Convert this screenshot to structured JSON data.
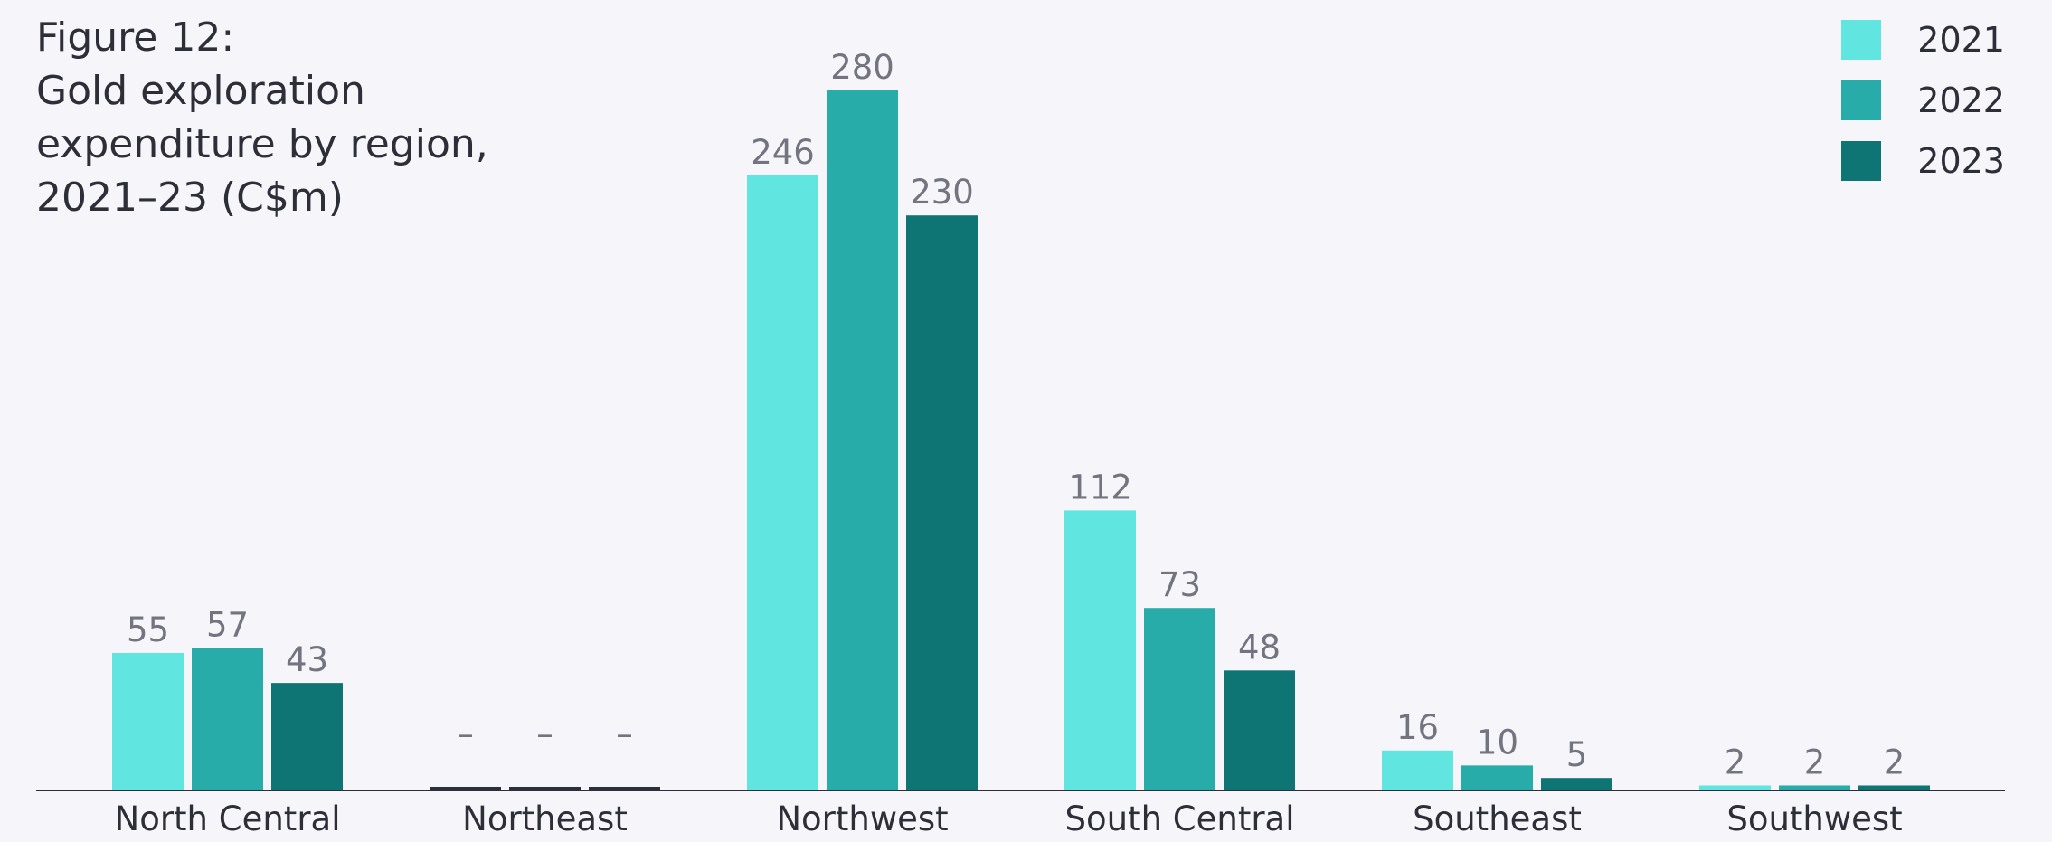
{
  "chart_data": {
    "type": "bar",
    "title_lines": [
      "Figure 12:",
      "Gold exploration",
      "expenditure by region,",
      "2021–23 (C$m)"
    ],
    "categories": [
      "North Central",
      "Northeast",
      "Northwest",
      "South Central",
      "Southeast",
      "Southwest"
    ],
    "series": [
      {
        "name": "2021",
        "color": "#61e5e1",
        "values": [
          55,
          null,
          246,
          112,
          16,
          2
        ],
        "labels": [
          "55",
          "–",
          "246",
          "112",
          "16",
          "2"
        ]
      },
      {
        "name": "2022",
        "color": "#28acaa",
        "values": [
          57,
          null,
          280,
          73,
          10,
          2
        ],
        "labels": [
          "57",
          "–",
          "280",
          "73",
          "10",
          "2"
        ]
      },
      {
        "name": "2023",
        "color": "#0f7574",
        "values": [
          43,
          null,
          230,
          48,
          5,
          2
        ],
        "labels": [
          "43",
          "–",
          "230",
          "48",
          "5",
          "2"
        ]
      }
    ],
    "ylim": [
      0,
      280
    ],
    "xlabel": "",
    "ylabel": "",
    "grid": false,
    "legend_position": "top-right",
    "axis_color": "#2e2e38",
    "data_label_color": "#747480",
    "missing_bar_color": "#2e2e38"
  }
}
